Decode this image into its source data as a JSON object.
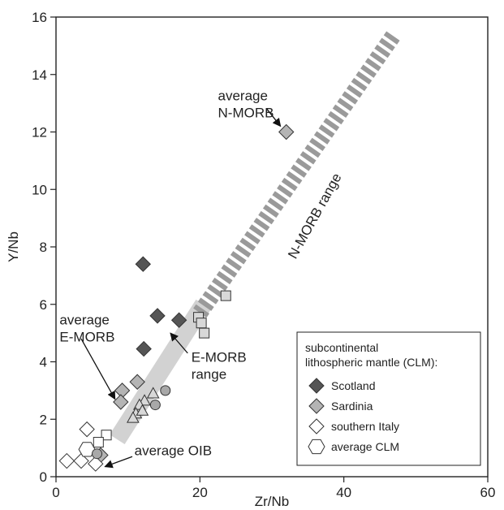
{
  "chart_data": {
    "type": "scatter",
    "xlabel": "Zr/Nb",
    "ylabel": "Y/Nb",
    "xlim": [
      0,
      60
    ],
    "ylim": [
      0,
      16
    ],
    "xticks": [
      0,
      20,
      40,
      60
    ],
    "yticks": [
      0,
      2,
      4,
      6,
      8,
      10,
      12,
      14,
      16
    ],
    "grid": false,
    "legend_position": "bottom-right",
    "colors": {
      "scotland": "#555555",
      "sardinia": "#b4b4b4",
      "italy": "#ffffff",
      "clm": "#ffffff",
      "emorb_band": "#d2d2d2",
      "nmorb_band": "#9a9a9a",
      "edge": "#333333"
    },
    "legend": {
      "title_lines": [
        "subcontinental",
        "lithospheric mantle (CLM):"
      ],
      "entries": [
        {
          "label": "Scotland",
          "marker": "diamond",
          "color": "#555555"
        },
        {
          "label": "Sardinia",
          "marker": "diamond",
          "color": "#b4b4b4"
        },
        {
          "label": "southern Italy",
          "marker": "diamond",
          "color": "#ffffff"
        },
        {
          "label": "average CLM",
          "marker": "hexagon",
          "color": "#ffffff"
        }
      ]
    },
    "bands": {
      "emorb": {
        "x0": 8.5,
        "y0": 1.3,
        "x1": 20.5,
        "y1": 6.0
      },
      "nmorb": {
        "x0": 20.0,
        "y0": 5.7,
        "x1": 47.0,
        "y1": 15.4
      }
    },
    "annotations": [
      {
        "lines": [
          "average",
          "N-MORB"
        ],
        "anchor": [
          22.5,
          13.1
        ],
        "arrow_from": [
          29.3,
          12.8
        ],
        "arrow_to": [
          31.2,
          12.2
        ]
      },
      {
        "lines": [
          "average",
          "E-MORB"
        ],
        "anchor": [
          0.5,
          5.3
        ],
        "arrow_from": [
          3.5,
          4.8
        ],
        "arrow_to": [
          8.2,
          2.7
        ]
      },
      {
        "lines": [
          "E-MORB",
          "range"
        ],
        "anchor": [
          18.8,
          4.0
        ],
        "arrow_from": [
          18.3,
          4.3
        ],
        "arrow_to": [
          15.9,
          5.0
        ]
      },
      {
        "lines": [
          "average OIB"
        ],
        "anchor": [
          10.9,
          0.75
        ],
        "arrow_from": [
          10.6,
          0.7
        ],
        "arrow_to": [
          6.8,
          0.35
        ]
      },
      {
        "lines": [
          "N-MORB range"
        ],
        "anchor": [
          36.5,
          9.0
        ],
        "rotate": -61
      }
    ],
    "series": [
      {
        "name": "Scotland",
        "marker": "diamond",
        "color": "#555555",
        "points": [
          [
            12.1,
            7.4
          ],
          [
            14.1,
            5.6
          ],
          [
            17.1,
            5.45
          ],
          [
            12.2,
            4.45
          ]
        ]
      },
      {
        "name": "Sardinia",
        "marker": "diamond",
        "color": "#b4b4b4",
        "points": [
          [
            32.0,
            12.0
          ],
          [
            11.3,
            3.3
          ],
          [
            9.2,
            3.0
          ],
          [
            9.0,
            2.6
          ],
          [
            6.2,
            0.75
          ]
        ]
      },
      {
        "name": "southern Italy",
        "marker": "diamond",
        "color": "#ffffff",
        "points": [
          [
            4.3,
            1.65
          ],
          [
            3.5,
            0.55
          ],
          [
            1.5,
            0.55
          ],
          [
            5.5,
            0.45
          ]
        ]
      },
      {
        "marker": "hexagon",
        "color": "#ffffff",
        "points": [
          [
            4.3,
            0.95
          ]
        ]
      },
      {
        "marker": "triangle",
        "color": "#d8d8d8",
        "points": [
          [
            13.5,
            2.9
          ],
          [
            12.3,
            2.65
          ],
          [
            11.6,
            2.5
          ],
          [
            11.1,
            2.2
          ],
          [
            10.7,
            2.05
          ],
          [
            12.0,
            2.3
          ]
        ]
      },
      {
        "marker": "circle",
        "color": "#a8a8a8",
        "points": [
          [
            15.2,
            3.0
          ],
          [
            13.8,
            2.5
          ],
          [
            5.7,
            0.8
          ]
        ]
      },
      {
        "marker": "square",
        "color": "#d8d8d8",
        "points": [
          [
            23.6,
            6.3
          ],
          [
            19.8,
            5.55
          ],
          [
            20.2,
            5.35
          ],
          [
            20.6,
            5.0
          ]
        ]
      },
      {
        "marker": "square",
        "color": "#ffffff",
        "points": [
          [
            7.0,
            1.45
          ],
          [
            5.9,
            1.2
          ]
        ]
      }
    ]
  }
}
